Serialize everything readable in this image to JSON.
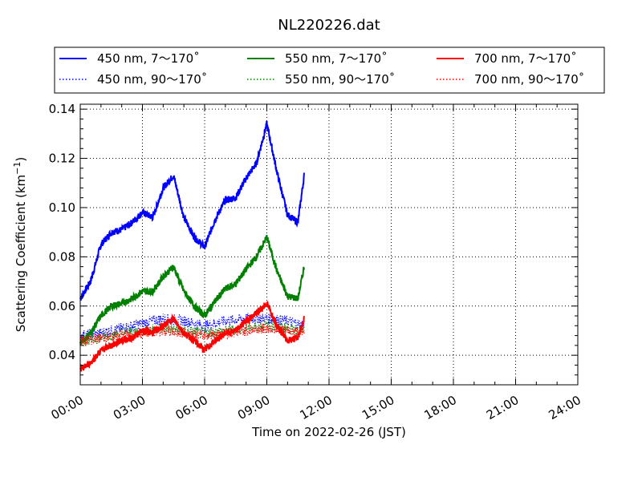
{
  "chart_data": {
    "type": "line",
    "title": "NL220226.dat",
    "xlabel": "Time on 2022-02-26 (JST)",
    "ylabel_main": "Scattering Coefficient (km",
    "ylabel_sup": "−1",
    "ylabel_end": ")",
    "xlim_hours": [
      0,
      24
    ],
    "ylim": [
      0.028,
      0.142
    ],
    "xticks": [
      {
        "h": 0,
        "label": "00:00"
      },
      {
        "h": 3,
        "label": "03:00"
      },
      {
        "h": 6,
        "label": "06:00"
      },
      {
        "h": 9,
        "label": "09:00"
      },
      {
        "h": 12,
        "label": "12:00"
      },
      {
        "h": 15,
        "label": "15:00"
      },
      {
        "h": 18,
        "label": "18:00"
      },
      {
        "h": 21,
        "label": "21:00"
      },
      {
        "h": 24,
        "label": "24:00"
      }
    ],
    "yticks": [
      {
        "v": 0.04,
        "label": "0.04"
      },
      {
        "v": 0.06,
        "label": "0.06"
      },
      {
        "v": 0.08,
        "label": "0.08"
      },
      {
        "v": 0.1,
        "label": "0.10"
      },
      {
        "v": 0.12,
        "label": "0.12"
      },
      {
        "v": 0.14,
        "label": "0.14"
      }
    ],
    "grid": true,
    "legend_position": "top (above plot), 3 columns",
    "series": [
      {
        "name": "450 nm, 7～170˚",
        "color": "#0000ff",
        "style": "solid",
        "x": [
          0,
          0.5,
          1,
          1.5,
          2,
          2.5,
          3,
          3.5,
          4,
          4.5,
          5,
          5.5,
          6,
          6.5,
          7,
          7.5,
          8,
          8.5,
          9,
          9.5,
          10,
          10.5,
          10.8
        ],
        "y": [
          0.063,
          0.07,
          0.085,
          0.09,
          0.091,
          0.094,
          0.098,
          0.096,
          0.108,
          0.113,
          0.096,
          0.088,
          0.084,
          0.095,
          0.103,
          0.104,
          0.112,
          0.118,
          0.134,
          0.114,
          0.097,
          0.094,
          0.113
        ]
      },
      {
        "name": "450 nm, 90～170˚",
        "color": "#0000ff",
        "style": "dotted",
        "x": [
          0,
          1,
          2,
          3,
          4,
          5,
          6,
          7,
          8,
          9,
          10,
          10.8
        ],
        "y": [
          0.048,
          0.049,
          0.051,
          0.053,
          0.055,
          0.054,
          0.052,
          0.054,
          0.055,
          0.055,
          0.054,
          0.052
        ]
      },
      {
        "name": "550 nm, 7～170˚",
        "color": "#008000",
        "style": "solid",
        "x": [
          0,
          0.5,
          1,
          1.5,
          2,
          2.5,
          3,
          3.5,
          4,
          4.5,
          5,
          5.5,
          6,
          6.5,
          7,
          7.5,
          8,
          8.5,
          9,
          9.5,
          10,
          10.5,
          10.8
        ],
        "y": [
          0.045,
          0.049,
          0.056,
          0.06,
          0.061,
          0.063,
          0.066,
          0.066,
          0.072,
          0.076,
          0.066,
          0.06,
          0.056,
          0.062,
          0.067,
          0.069,
          0.075,
          0.08,
          0.088,
          0.074,
          0.064,
          0.063,
          0.076
        ]
      },
      {
        "name": "550 nm, 90～170˚",
        "color": "#008000",
        "style": "dotted",
        "x": [
          0,
          1,
          2,
          3,
          4,
          5,
          6,
          7,
          8,
          9,
          10,
          10.8
        ],
        "y": [
          0.046,
          0.047,
          0.049,
          0.05,
          0.051,
          0.05,
          0.049,
          0.05,
          0.051,
          0.052,
          0.051,
          0.05
        ]
      },
      {
        "name": "700 nm, 7～170˚",
        "color": "#ff0000",
        "style": "solid",
        "x": [
          0,
          0.5,
          1,
          1.5,
          2,
          2.5,
          3,
          3.5,
          4,
          4.5,
          5,
          5.5,
          6,
          6.5,
          7,
          7.5,
          8,
          8.5,
          9,
          9.5,
          10,
          10.5,
          10.8
        ],
        "y": [
          0.034,
          0.037,
          0.042,
          0.044,
          0.046,
          0.047,
          0.05,
          0.049,
          0.052,
          0.055,
          0.049,
          0.046,
          0.042,
          0.046,
          0.049,
          0.05,
          0.054,
          0.057,
          0.061,
          0.052,
          0.046,
          0.047,
          0.055
        ]
      },
      {
        "name": "700 nm, 90～170˚",
        "color": "#ff0000",
        "style": "dotted",
        "x": [
          0,
          1,
          2,
          3,
          4,
          5,
          6,
          7,
          8,
          9,
          10,
          10.8
        ],
        "y": [
          0.046,
          0.047,
          0.048,
          0.049,
          0.05,
          0.049,
          0.048,
          0.049,
          0.05,
          0.051,
          0.05,
          0.049
        ]
      }
    ]
  }
}
